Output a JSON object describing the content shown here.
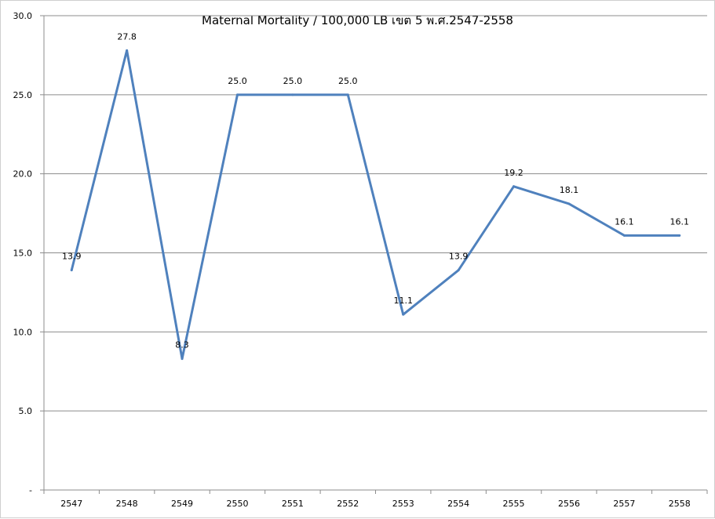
{
  "chart_data": {
    "type": "line",
    "title": "Maternal Mortality / 100,000 LB เขต 5 พ.ศ.2547-2558",
    "xlabel": "",
    "ylabel": "",
    "categories": [
      "2547",
      "2548",
      "2549",
      "2550",
      "2551",
      "2552",
      "2553",
      "2554",
      "2555",
      "2556",
      "2557",
      "2558"
    ],
    "series": [
      {
        "values": [
          13.9,
          27.8,
          8.3,
          25.0,
          25.0,
          25.0,
          11.1,
          13.9,
          19.2,
          18.1,
          16.1,
          16.1
        ],
        "data_labels": [
          "13.9",
          "27.8",
          "8.3",
          "25.0",
          "25.0",
          "25.0",
          "11.1",
          "13.9",
          "19.2",
          "18.1",
          "16.1",
          "16.1"
        ],
        "color": "#4f81bd"
      }
    ],
    "ylim": [
      0,
      30
    ],
    "yticks": [
      0,
      5,
      10,
      15,
      20,
      25,
      30
    ],
    "ytick_labels": [
      "-",
      "5.0",
      "10.0",
      "15.0",
      "20.0",
      "25.0",
      "30.0"
    ],
    "grid": true,
    "legend": "none"
  }
}
